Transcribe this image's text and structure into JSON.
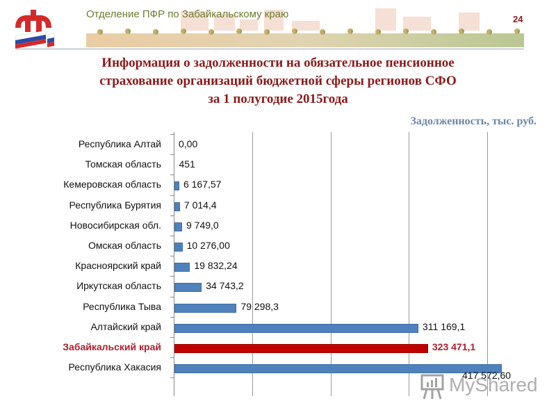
{
  "header": {
    "org_title": "Отделение ПФР по Забайкальскому  краю",
    "page_number": "24",
    "logo": "pfr-logo-icon"
  },
  "title": {
    "line1": "Информация о задолженности на обязательное пенсионное",
    "line2": "страхование  организаций бюджетной сферы регионов СФО",
    "line3": "за 1 полугодие 2015года"
  },
  "units_label": "Задолженность, тыс. руб.",
  "watermark": "MyShared",
  "colors": {
    "bar": "#4f81bd",
    "highlight_bar": "#c00000",
    "title": "#8b1a1a",
    "units": "#6c86a8",
    "org_title": "#6b7d2e"
  },
  "chart_data": {
    "type": "bar",
    "orientation": "horizontal",
    "title": "Информация о задолженности на обязательное пенсионное страхование организаций бюджетной сферы регионов СФО за 1 полугодие 2015года",
    "xlabel": "Задолженность, тыс. руб.",
    "ylabel": "",
    "categories": [
      "Республика Алтай",
      "Томская область",
      "Кемеровская область",
      "Республика Бурятия",
      "Новосибирская обл.",
      "Омская область",
      "Красноярский край",
      "Иркутская область",
      "Республика Тыва",
      "Алтайский край",
      "Забайкальский край",
      "Республика Хакасия"
    ],
    "values": [
      0.0,
      451,
      6167.57,
      7014.4,
      9749.0,
      10276.0,
      19832.24,
      34743.2,
      79298.3,
      311169.1,
      323471.1,
      417572.6
    ],
    "value_labels": [
      "0,00",
      "451",
      "6 167,57",
      "7 014,4",
      "9 749,0",
      "10 276,00",
      "19 832,24",
      "34 743,2",
      "79 298,3",
      "311 169,1",
      "323 471,1",
      "417 572,60"
    ],
    "highlight": "Забайкальский край",
    "xlim": [
      0,
      500000
    ],
    "gridlines_x": [
      100000,
      200000,
      300000,
      400000
    ],
    "grid": true,
    "legend": "none"
  }
}
